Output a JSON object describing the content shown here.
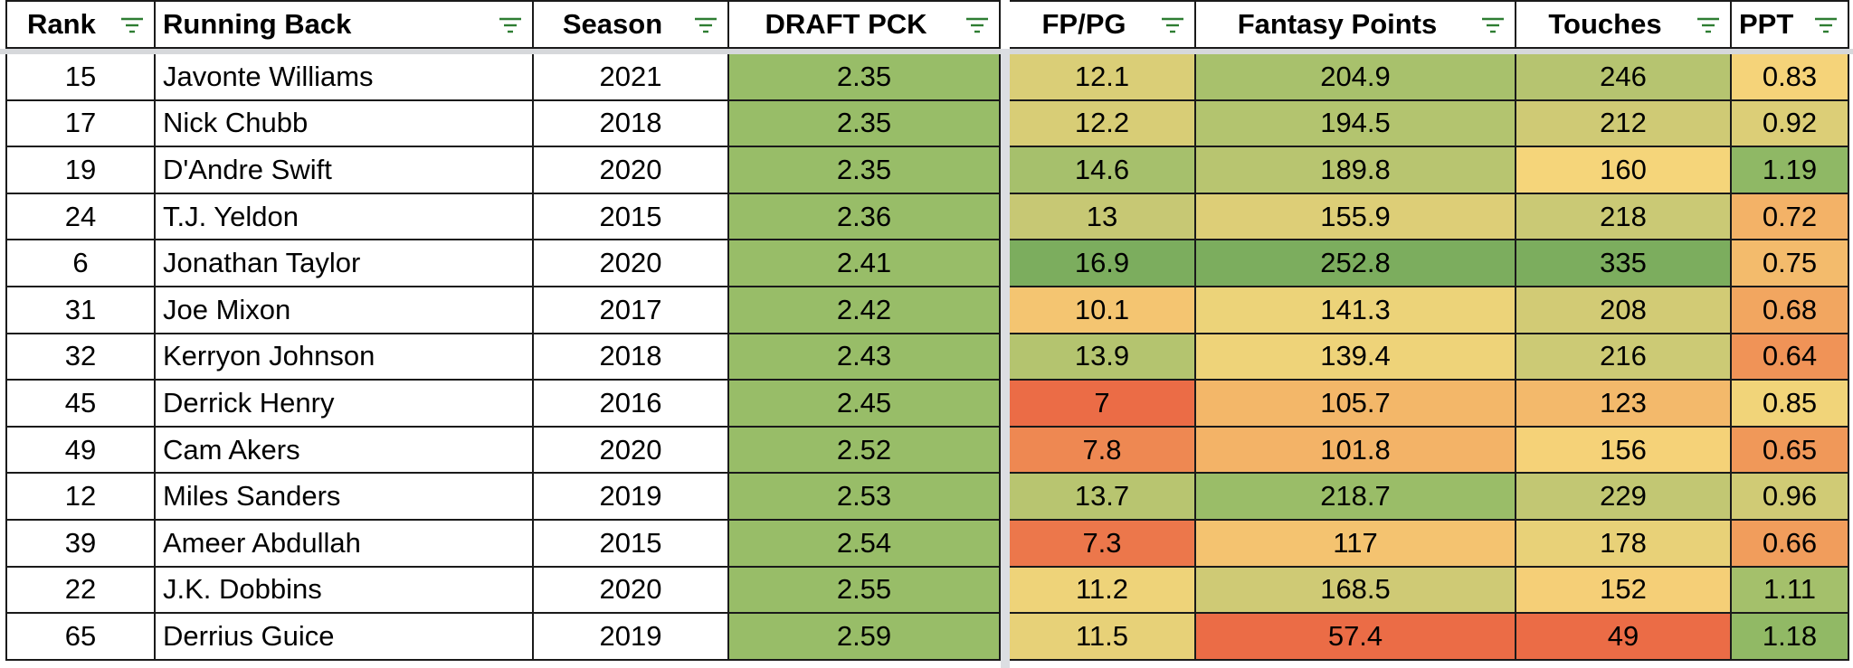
{
  "columns": [
    {
      "key": "rank",
      "label": "Rank"
    },
    {
      "key": "running_back",
      "label": "Running Back"
    },
    {
      "key": "season",
      "label": "Season"
    },
    {
      "key": "draft_pck",
      "label": "DRAFT PCK"
    },
    {
      "key": "fppg",
      "label": "FP/PG"
    },
    {
      "key": "fantasy_points",
      "label": "Fantasy Points"
    },
    {
      "key": "touches",
      "label": "Touches"
    },
    {
      "key": "ppt",
      "label": "PPT"
    }
  ],
  "filter_icon_color": "#2e7d32",
  "rows": [
    {
      "rank": "15",
      "running_back": "Javonte Williams",
      "season": "2021",
      "draft_pck": "2.35",
      "fppg": "12.1",
      "fantasy_points": "204.9",
      "touches": "246",
      "ppt": "0.83"
    },
    {
      "rank": "17",
      "running_back": "Nick Chubb",
      "season": "2018",
      "draft_pck": "2.35",
      "fppg": "12.2",
      "fantasy_points": "194.5",
      "touches": "212",
      "ppt": "0.92"
    },
    {
      "rank": "19",
      "running_back": "D'Andre Swift",
      "season": "2020",
      "draft_pck": "2.35",
      "fppg": "14.6",
      "fantasy_points": "189.8",
      "touches": "160",
      "ppt": "1.19"
    },
    {
      "rank": "24",
      "running_back": "T.J. Yeldon",
      "season": "2015",
      "draft_pck": "2.36",
      "fppg": "13",
      "fantasy_points": "155.9",
      "touches": "218",
      "ppt": "0.72"
    },
    {
      "rank": "6",
      "running_back": "Jonathan Taylor",
      "season": "2020",
      "draft_pck": "2.41",
      "fppg": "16.9",
      "fantasy_points": "252.8",
      "touches": "335",
      "ppt": "0.75"
    },
    {
      "rank": "31",
      "running_back": "Joe Mixon",
      "season": "2017",
      "draft_pck": "2.42",
      "fppg": "10.1",
      "fantasy_points": "141.3",
      "touches": "208",
      "ppt": "0.68"
    },
    {
      "rank": "32",
      "running_back": "Kerryon Johnson",
      "season": "2018",
      "draft_pck": "2.43",
      "fppg": "13.9",
      "fantasy_points": "139.4",
      "touches": "216",
      "ppt": "0.64"
    },
    {
      "rank": "45",
      "running_back": "Derrick Henry",
      "season": "2016",
      "draft_pck": "2.45",
      "fppg": "7",
      "fantasy_points": "105.7",
      "touches": "123",
      "ppt": "0.85"
    },
    {
      "rank": "49",
      "running_back": "Cam Akers",
      "season": "2020",
      "draft_pck": "2.52",
      "fppg": "7.8",
      "fantasy_points": "101.8",
      "touches": "156",
      "ppt": "0.65"
    },
    {
      "rank": "12",
      "running_back": "Miles Sanders",
      "season": "2019",
      "draft_pck": "2.53",
      "fppg": "13.7",
      "fantasy_points": "218.7",
      "touches": "229",
      "ppt": "0.96"
    },
    {
      "rank": "39",
      "running_back": "Ameer Abdullah",
      "season": "2015",
      "draft_pck": "2.54",
      "fppg": "7.3",
      "fantasy_points": "117",
      "touches": "178",
      "ppt": "0.66"
    },
    {
      "rank": "22",
      "running_back": "J.K. Dobbins",
      "season": "2020",
      "draft_pck": "2.55",
      "fppg": "11.2",
      "fantasy_points": "168.5",
      "touches": "152",
      "ppt": "1.11"
    },
    {
      "rank": "65",
      "running_back": "Derrius Guice",
      "season": "2019",
      "draft_pck": "2.59",
      "fppg": "11.5",
      "fantasy_points": "57.4",
      "touches": "49",
      "ppt": "1.18"
    }
  ],
  "heatmap": {
    "red": "#e8593d",
    "orange": "#f2a660",
    "yellow": "#f5d57a",
    "light_green": "#c6c874",
    "green": "#98bd68",
    "dark_green": "#72a85a"
  }
}
